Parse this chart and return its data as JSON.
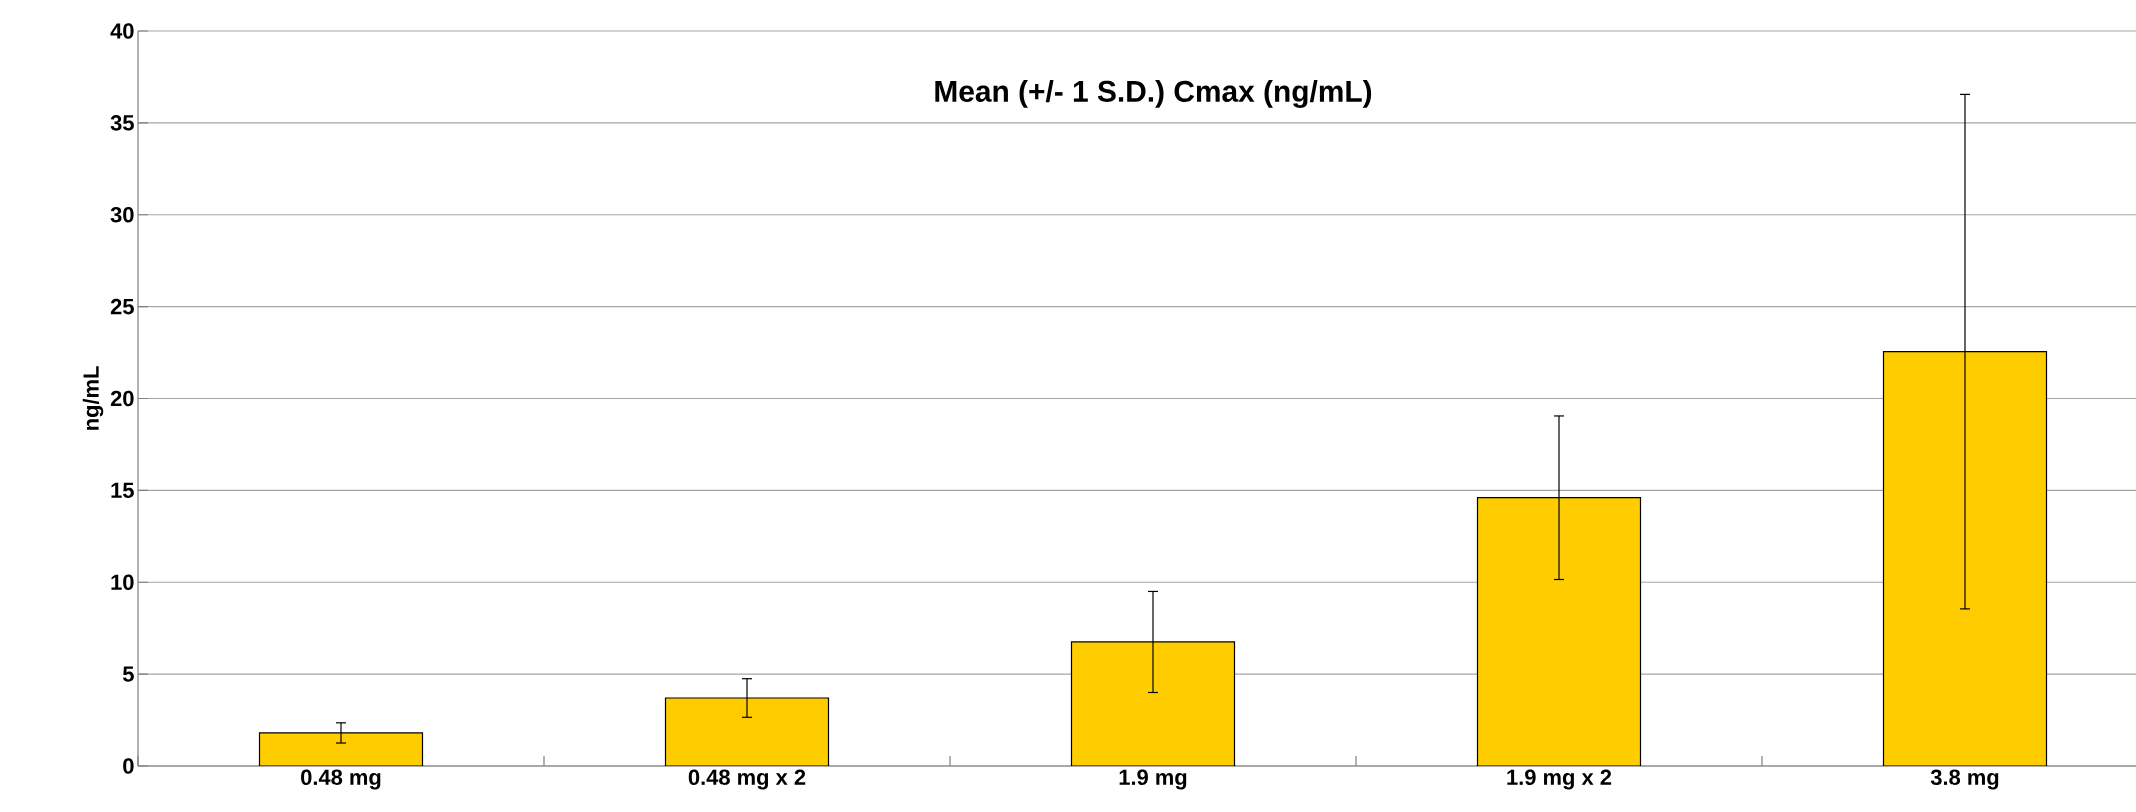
{
  "chart_data": {
    "type": "bar",
    "title": "Mean (+/- 1 S.D.) Cmax (ng/mL)",
    "ylabel": "ng/mL",
    "categories": [
      "0.48 mg",
      "0.48 mg x 2",
      "1.9 mg",
      "1.9 mg x 2",
      "3.8 mg"
    ],
    "values": [
      1.8,
      3.7,
      6.75,
      14.6,
      22.55
    ],
    "errors": [
      0.55,
      1.05,
      2.75,
      4.45,
      14
    ],
    "color": "#ffcc00",
    "ylim": [
      0,
      40
    ],
    "yticks": [
      0,
      5,
      10,
      15,
      20,
      25,
      30,
      35,
      40
    ],
    "grid": "y"
  }
}
